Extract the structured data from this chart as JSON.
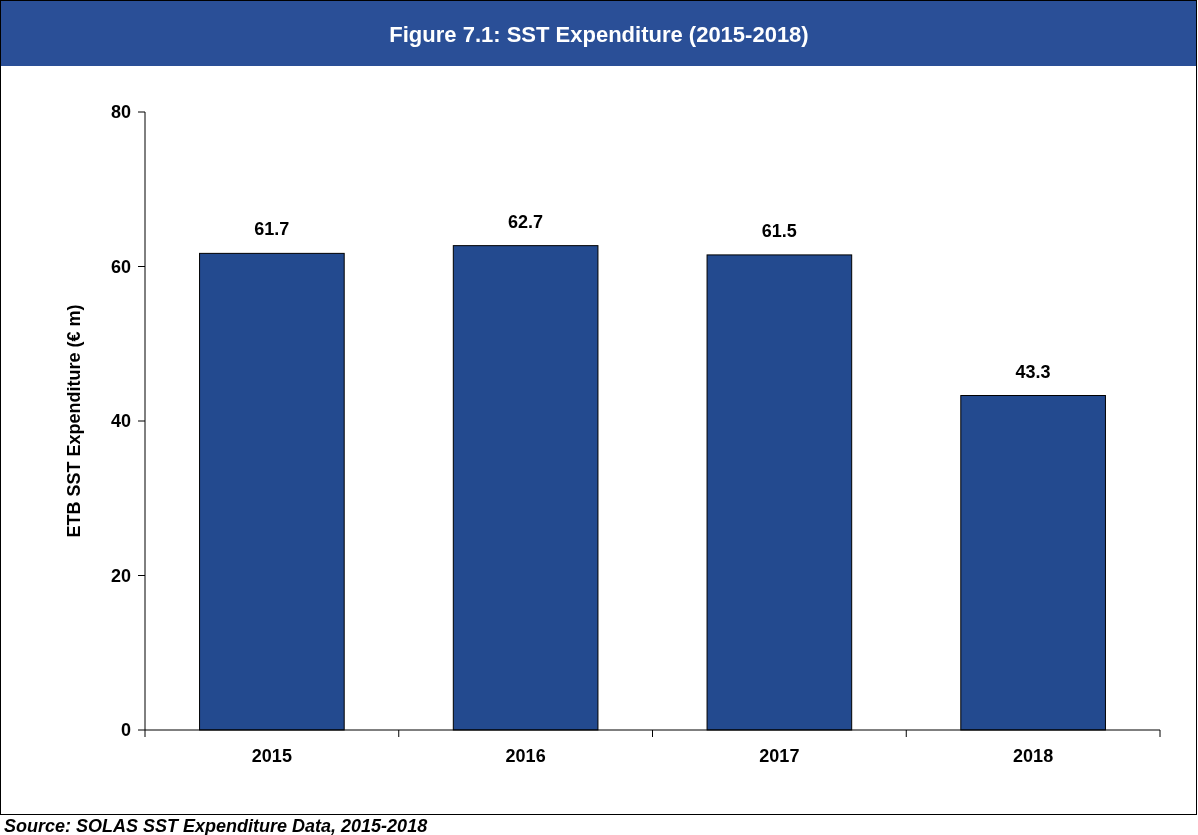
{
  "chart_data": {
    "type": "bar",
    "title": "Figure 7.1: SST Expenditure (2015-2018)",
    "ylabel": "ETB SST Expenditure (€ m)",
    "categories": [
      "2015",
      "2016",
      "2017",
      "2018"
    ],
    "values": [
      61.7,
      62.7,
      61.5,
      43.3
    ],
    "color": "#234a8f",
    "ylim": [
      0,
      80
    ],
    "yticks": [
      0,
      20,
      40,
      60,
      80
    ],
    "data_labels": true,
    "annotations": [
      "Source: SOLAS SST Expenditure Data, 2015-2018"
    ]
  }
}
